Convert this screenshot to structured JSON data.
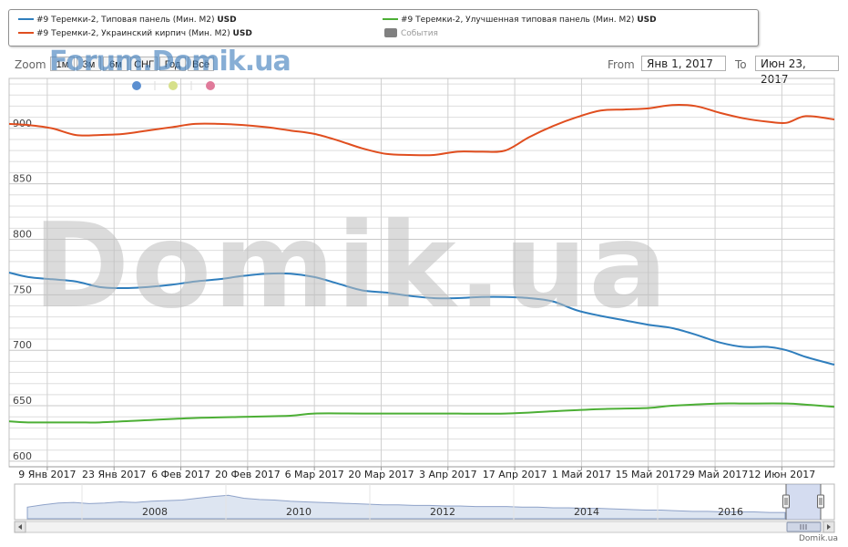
{
  "legend": {
    "items": [
      {
        "label": "#9 Теремки-2, Типовая панель (Мин. М2)",
        "unit": "USD",
        "color": "#2f7ebd"
      },
      {
        "label": "#9 Теремки-2, Украинский кирпич (Мин. М2)",
        "unit": "USD",
        "color": "#e04e1f"
      },
      {
        "label": "#9 Теремки-2, Улучшенная типовая панель (Мин. М2)",
        "unit": "USD",
        "color": "#4caf35"
      }
    ],
    "events": {
      "label": "События",
      "color": "#808080"
    }
  },
  "range_selector": {
    "zoom_label": "Zoom",
    "buttons": [
      "1м",
      "3м",
      "6м",
      "СНГ",
      "Год",
      "Всё"
    ],
    "from_label": "From",
    "from_value": "Янв 1, 2017",
    "to_label": "To",
    "to_value": "Июн 23, 2017"
  },
  "watermarks": {
    "forum": "Forum.Domik.ua",
    "big": "Domik.ua"
  },
  "credit": "Domik.ua",
  "marker_colors": [
    "#5b8fd0",
    "#d6e08a",
    "#e07a9a"
  ],
  "chart_data": {
    "type": "line",
    "x_ticks": [
      "9 Янв 2017",
      "23 Янв 2017",
      "6 Фев 2017",
      "20 Фев 2017",
      "6 Мар 2017",
      "20 Мар 2017",
      "3 Апр 2017",
      "17 Апр 2017",
      "1 Май 2017",
      "15 Май 2017",
      "29 Май 2017",
      "12 Июн 2017"
    ],
    "y_ticks": [
      600,
      650,
      700,
      750,
      800,
      850,
      900
    ],
    "ylim": [
      595,
      945
    ],
    "xlim": [
      "2017-01-01",
      "2017-06-23"
    ],
    "grid": true,
    "series": [
      {
        "name": "#9 Теремки-2, Типовая панель (Мин. М2)",
        "color": "#2f7ebd",
        "points": [
          [
            "2017-01-01",
            770
          ],
          [
            "2017-01-05",
            766
          ],
          [
            "2017-01-10",
            764
          ],
          [
            "2017-01-15",
            762
          ],
          [
            "2017-01-20",
            757
          ],
          [
            "2017-01-25",
            756
          ],
          [
            "2017-01-30",
            757
          ],
          [
            "2017-02-04",
            759
          ],
          [
            "2017-02-09",
            762
          ],
          [
            "2017-02-14",
            764
          ],
          [
            "2017-02-19",
            767
          ],
          [
            "2017-02-24",
            769
          ],
          [
            "2017-03-01",
            769
          ],
          [
            "2017-03-06",
            766
          ],
          [
            "2017-03-11",
            760
          ],
          [
            "2017-03-16",
            754
          ],
          [
            "2017-03-21",
            752
          ],
          [
            "2017-03-26",
            749
          ],
          [
            "2017-03-31",
            747
          ],
          [
            "2017-04-05",
            747
          ],
          [
            "2017-04-10",
            748
          ],
          [
            "2017-04-15",
            748
          ],
          [
            "2017-04-20",
            747
          ],
          [
            "2017-04-25",
            744
          ],
          [
            "2017-04-30",
            736
          ],
          [
            "2017-05-05",
            731
          ],
          [
            "2017-05-10",
            727
          ],
          [
            "2017-05-15",
            723
          ],
          [
            "2017-05-20",
            720
          ],
          [
            "2017-05-25",
            714
          ],
          [
            "2017-05-30",
            707
          ],
          [
            "2017-06-04",
            703
          ],
          [
            "2017-06-09",
            703
          ],
          [
            "2017-06-13",
            700
          ],
          [
            "2017-06-17",
            694
          ],
          [
            "2017-06-23",
            687
          ]
        ]
      },
      {
        "name": "#9 Теремки-2, Украинский кирпич (Мин. М2)",
        "color": "#e04e1f",
        "points": [
          [
            "2017-01-01",
            904
          ],
          [
            "2017-01-05",
            903
          ],
          [
            "2017-01-10",
            900
          ],
          [
            "2017-01-15",
            894
          ],
          [
            "2017-01-20",
            894
          ],
          [
            "2017-01-25",
            895
          ],
          [
            "2017-01-30",
            898
          ],
          [
            "2017-02-04",
            901
          ],
          [
            "2017-02-09",
            904
          ],
          [
            "2017-02-14",
            904
          ],
          [
            "2017-02-19",
            903
          ],
          [
            "2017-02-24",
            901
          ],
          [
            "2017-03-01",
            898
          ],
          [
            "2017-03-06",
            895
          ],
          [
            "2017-03-11",
            889
          ],
          [
            "2017-03-16",
            882
          ],
          [
            "2017-03-21",
            877
          ],
          [
            "2017-03-26",
            876
          ],
          [
            "2017-03-31",
            876
          ],
          [
            "2017-04-05",
            879
          ],
          [
            "2017-04-10",
            879
          ],
          [
            "2017-04-15",
            880
          ],
          [
            "2017-04-20",
            892
          ],
          [
            "2017-04-25",
            902
          ],
          [
            "2017-04-30",
            910
          ],
          [
            "2017-05-05",
            916
          ],
          [
            "2017-05-10",
            917
          ],
          [
            "2017-05-15",
            918
          ],
          [
            "2017-05-20",
            921
          ],
          [
            "2017-05-25",
            920
          ],
          [
            "2017-05-30",
            914
          ],
          [
            "2017-06-04",
            909
          ],
          [
            "2017-06-09",
            906
          ],
          [
            "2017-06-13",
            905
          ],
          [
            "2017-06-17",
            911
          ],
          [
            "2017-06-23",
            908
          ]
        ]
      },
      {
        "name": "#9 Теремки-2, Улучшенная типовая панель (Мин. М2)",
        "color": "#4caf35",
        "points": [
          [
            "2017-01-01",
            636
          ],
          [
            "2017-01-05",
            635
          ],
          [
            "2017-01-15",
            635
          ],
          [
            "2017-01-20",
            635
          ],
          [
            "2017-01-30",
            637
          ],
          [
            "2017-02-09",
            639
          ],
          [
            "2017-02-19",
            640
          ],
          [
            "2017-03-01",
            641
          ],
          [
            "2017-03-06",
            643
          ],
          [
            "2017-03-16",
            643
          ],
          [
            "2017-03-31",
            643
          ],
          [
            "2017-04-15",
            643
          ],
          [
            "2017-04-25",
            645
          ],
          [
            "2017-05-05",
            647
          ],
          [
            "2017-05-15",
            648
          ],
          [
            "2017-05-20",
            650
          ],
          [
            "2017-05-30",
            652
          ],
          [
            "2017-06-04",
            652
          ],
          [
            "2017-06-13",
            652
          ],
          [
            "2017-06-17",
            651
          ],
          [
            "2017-06-23",
            649
          ]
        ]
      }
    ],
    "navigator": {
      "years": [
        "2008",
        "2010",
        "2012",
        "2014",
        "2016"
      ],
      "profile": [
        18,
        22,
        25,
        26,
        24,
        25,
        27,
        26,
        28,
        29,
        30,
        33,
        36,
        38,
        33,
        31,
        30,
        28,
        27,
        26,
        25,
        24,
        23,
        22,
        22,
        21,
        21,
        20,
        20,
        19,
        19,
        19,
        18,
        18,
        17,
        17,
        16,
        16,
        15,
        14,
        13,
        13,
        12,
        11,
        11,
        10,
        10,
        10,
        9,
        9
      ]
    }
  }
}
